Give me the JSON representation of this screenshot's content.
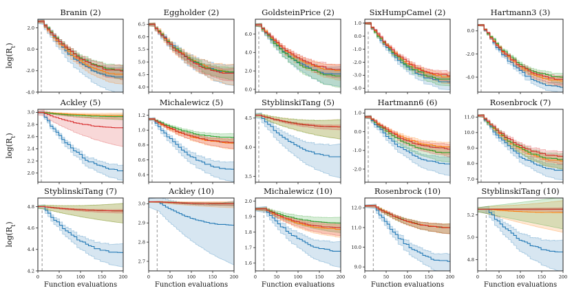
{
  "figure": {
    "series_colors": [
      "#1f77b4",
      "#ff7f0e",
      "#2ca02c",
      "#d62728"
    ],
    "init_marker_color": "#aaaaaa"
  },
  "chart_data": [
    {
      "type": "line",
      "title": "Branin (2)",
      "ylabel": "log(R_t)",
      "xlabel": "",
      "ylim": [
        -4.0,
        2.8
      ],
      "yticks": [
        "2.0",
        "0.0",
        "-2.0",
        "-4.0"
      ],
      "yvals": [
        2,
        0,
        -2,
        -4
      ],
      "xlim": [
        0,
        200
      ],
      "xticks": [
        "",
        "",
        "",
        "",
        ""
      ],
      "init_x": 8,
      "series": [
        {
          "color": "#1f77b4",
          "start": 2.6,
          "end": -2.6,
          "band": 1.5
        },
        {
          "color": "#ff7f0e",
          "start": 2.6,
          "end": -2.3,
          "band": 0.9
        },
        {
          "color": "#2ca02c",
          "start": 2.6,
          "end": -1.9,
          "band": 0.8
        },
        {
          "color": "#d62728",
          "start": 2.6,
          "end": -2.0,
          "band": 0.8
        }
      ]
    },
    {
      "type": "line",
      "title": "Eggholder (2)",
      "ylabel": "",
      "xlabel": "",
      "ylim": [
        3.8,
        6.7
      ],
      "yticks": [
        "6.5",
        "6.0",
        "5.5",
        "5.0",
        "4.5",
        "4.0"
      ],
      "yvals": [
        6.5,
        6.0,
        5.5,
        5.0,
        4.5,
        4.0
      ],
      "xlim": [
        0,
        200
      ],
      "xticks": [
        "",
        "",
        "",
        "",
        ""
      ],
      "init_x": 8,
      "series": [
        {
          "color": "#1f77b4",
          "start": 6.5,
          "end": 4.6,
          "band": 0.5
        },
        {
          "color": "#ff7f0e",
          "start": 6.5,
          "end": 4.6,
          "band": 0.5
        },
        {
          "color": "#2ca02c",
          "start": 6.5,
          "end": 4.6,
          "band": 0.3
        },
        {
          "color": "#d62728",
          "start": 6.5,
          "end": 4.55,
          "band": 0.3
        }
      ]
    },
    {
      "type": "line",
      "title": "GoldsteinPrice (2)",
      "ylabel": "",
      "xlabel": "",
      "ylim": [
        -0.3,
        7.6
      ],
      "yticks": [
        "6.0",
        "4.0",
        "2.0",
        "0.0"
      ],
      "yvals": [
        6,
        4,
        2,
        0
      ],
      "xlim": [
        0,
        200
      ],
      "xticks": [
        "",
        "",
        "",
        "",
        ""
      ],
      "init_x": 8,
      "series": [
        {
          "color": "#1f77b4",
          "start": 7.0,
          "end": 1.6,
          "band": 1.3
        },
        {
          "color": "#ff7f0e",
          "start": 7.0,
          "end": 2.1,
          "band": 1.0
        },
        {
          "color": "#2ca02c",
          "start": 7.0,
          "end": 1.5,
          "band": 1.2
        },
        {
          "color": "#d62728",
          "start": 7.0,
          "end": 2.2,
          "band": 0.9
        }
      ]
    },
    {
      "type": "line",
      "title": "SixHumpCamel (2)",
      "ylabel": "",
      "xlabel": "",
      "ylim": [
        -4.3,
        1.3
      ],
      "yticks": [
        "1.0",
        "0.0",
        "-1.0",
        "-2.0",
        "-3.0",
        "-4.0"
      ],
      "yvals": [
        1,
        0,
        -1,
        -2,
        -3,
        -4
      ],
      "xlim": [
        0,
        200
      ],
      "xticks": [
        "",
        "",
        "",
        "",
        ""
      ],
      "init_x": 8,
      "series": [
        {
          "color": "#1f77b4",
          "start": 1.0,
          "end": -3.5,
          "band": 0.6
        },
        {
          "color": "#ff7f0e",
          "start": 1.0,
          "end": -3.1,
          "band": 0.5
        },
        {
          "color": "#2ca02c",
          "start": 1.0,
          "end": -3.3,
          "band": 0.5
        },
        {
          "color": "#d62728",
          "start": 1.0,
          "end": -3.0,
          "band": 0.5
        }
      ]
    },
    {
      "type": "line",
      "title": "Hartmann3 (3)",
      "ylabel": "",
      "xlabel": "",
      "ylim": [
        -5.3,
        1.0
      ],
      "yticks": [
        "0.0",
        "-2.0",
        "-4.0"
      ],
      "yvals": [
        0,
        -2,
        -4
      ],
      "xlim": [
        0,
        200
      ],
      "xticks": [
        "",
        "",
        "",
        "",
        ""
      ],
      "init_x": 8,
      "series": [
        {
          "color": "#1f77b4",
          "start": 0.5,
          "end": -4.8,
          "band": 0.5
        },
        {
          "color": "#ff7f0e",
          "start": 0.5,
          "end": -4.3,
          "band": 0.5
        },
        {
          "color": "#2ca02c",
          "start": 0.5,
          "end": -4.0,
          "band": 0.5
        },
        {
          "color": "#d62728",
          "start": 0.5,
          "end": -4.2,
          "band": 0.5
        }
      ]
    },
    {
      "type": "line",
      "title": "Ackley (5)",
      "ylabel": "log(R_t)",
      "xlabel": "",
      "ylim": [
        1.85,
        3.05
      ],
      "yticks": [
        "3.0",
        "2.8",
        "2.6",
        "2.4",
        "2.2",
        "2.0"
      ],
      "yvals": [
        3.0,
        2.8,
        2.6,
        2.4,
        2.2,
        2.0
      ],
      "xlim": [
        0,
        200
      ],
      "xticks": [
        "",
        "",
        "",
        "",
        ""
      ],
      "init_x": 8,
      "series": [
        {
          "color": "#1f77b4",
          "start": 3.0,
          "end": 2.05,
          "band": 0.15
        },
        {
          "color": "#ff7f0e",
          "start": 3.0,
          "end": 2.95,
          "band": 0.06
        },
        {
          "color": "#2ca02c",
          "start": 3.0,
          "end": 2.93,
          "band": 0.05
        },
        {
          "color": "#d62728",
          "start": 3.0,
          "end": 2.75,
          "band": 0.3
        }
      ]
    },
    {
      "type": "line",
      "title": "Michalewicz (5)",
      "ylabel": "",
      "xlabel": "",
      "ylim": [
        0.3,
        1.28
      ],
      "yticks": [
        "1.2",
        "1.0",
        "0.8",
        "0.6",
        "0.4"
      ],
      "yvals": [
        1.2,
        1.0,
        0.8,
        0.6,
        0.4
      ],
      "xlim": [
        0,
        200
      ],
      "xticks": [
        "",
        "",
        "",
        "",
        ""
      ],
      "init_x": 8,
      "series": [
        {
          "color": "#1f77b4",
          "start": 1.15,
          "end": 0.48,
          "band": 0.16
        },
        {
          "color": "#ff7f0e",
          "start": 1.15,
          "end": 0.83,
          "band": 0.08
        },
        {
          "color": "#2ca02c",
          "start": 1.15,
          "end": 0.9,
          "band": 0.08
        },
        {
          "color": "#d62728",
          "start": 1.15,
          "end": 0.84,
          "band": 0.08
        }
      ]
    },
    {
      "type": "line",
      "title": "StyblinskiTang (5)",
      "ylabel": "",
      "xlabel": "",
      "ylim": [
        3.4,
        4.65
      ],
      "yticks": [
        "4.5",
        "4.0",
        "3.5"
      ],
      "yvals": [
        4.5,
        4.0,
        3.5
      ],
      "xlim": [
        0,
        200
      ],
      "xticks": [
        "",
        "",
        "",
        "",
        ""
      ],
      "init_x": 8,
      "series": [
        {
          "color": "#1f77b4",
          "start": 4.55,
          "end": 3.84,
          "band": 0.35
        },
        {
          "color": "#ff7f0e",
          "start": 4.55,
          "end": 4.35,
          "band": 0.2
        },
        {
          "color": "#2ca02c",
          "start": 4.55,
          "end": 4.35,
          "band": 0.2
        },
        {
          "color": "#d62728",
          "start": 4.55,
          "end": 4.35,
          "band": 0.05
        }
      ]
    },
    {
      "type": "line",
      "title": "Hartmann6 (6)",
      "ylabel": "",
      "xlabel": "",
      "ylim": [
        -2.7,
        1.2
      ],
      "yticks": [
        "1.0",
        "0.0",
        "-1.0",
        "-2.0"
      ],
      "yvals": [
        1,
        0,
        -1,
        -2
      ],
      "xlim": [
        0,
        200
      ],
      "xticks": [
        "",
        "",
        "",
        "",
        ""
      ],
      "init_x": 8,
      "series": [
        {
          "color": "#1f77b4",
          "start": 0.8,
          "end": -1.7,
          "band": 0.6
        },
        {
          "color": "#ff7f0e",
          "start": 0.8,
          "end": -0.8,
          "band": 0.4
        },
        {
          "color": "#2ca02c",
          "start": 0.8,
          "end": -1.1,
          "band": 0.5
        },
        {
          "color": "#d62728",
          "start": 0.8,
          "end": -0.9,
          "band": 0.4
        }
      ]
    },
    {
      "type": "line",
      "title": "Rosenbrock (7)",
      "ylabel": "",
      "xlabel": "",
      "ylim": [
        6.8,
        11.5
      ],
      "yticks": [
        "11.0",
        "10.0",
        "9.0",
        "8.0",
        "7.0"
      ],
      "yvals": [
        11,
        10,
        9,
        8,
        7
      ],
      "xlim": [
        0,
        200
      ],
      "xticks": [
        "",
        "",
        "",
        "",
        ""
      ],
      "init_x": 8,
      "series": [
        {
          "color": "#1f77b4",
          "start": 11.1,
          "end": 7.6,
          "band": 0.6
        },
        {
          "color": "#ff7f0e",
          "start": 11.1,
          "end": 8.2,
          "band": 0.5
        },
        {
          "color": "#2ca02c",
          "start": 11.1,
          "end": 8.3,
          "band": 0.6
        },
        {
          "color": "#d62728",
          "start": 11.1,
          "end": 8.5,
          "band": 0.5
        }
      ]
    },
    {
      "type": "line",
      "title": "StyblinskiTang (7)",
      "ylabel": "log(R_t)",
      "xlabel": "Function evaluations",
      "ylim": [
        4.2,
        4.88
      ],
      "yticks": [
        "4.8",
        "4.6",
        "4.4",
        "4.2"
      ],
      "yvals": [
        4.8,
        4.6,
        4.4,
        4.2
      ],
      "xlim": [
        0,
        200
      ],
      "xticks": [
        "0",
        "50",
        "100",
        "150",
        "200"
      ],
      "init_x": 10,
      "series": [
        {
          "color": "#1f77b4",
          "start": 4.8,
          "end": 4.37,
          "band": 0.13
        },
        {
          "color": "#ff7f0e",
          "start": 4.8,
          "end": 4.76,
          "band": 0.11
        },
        {
          "color": "#2ca02c",
          "start": 4.8,
          "end": 4.76,
          "band": 0.11
        },
        {
          "color": "#d62728",
          "start": 4.8,
          "end": 4.76,
          "band": 0.02
        }
      ]
    },
    {
      "type": "line",
      "title": "Ackley (10)",
      "ylabel": "",
      "xlabel": "Function evaluations",
      "ylim": [
        2.65,
        3.03
      ],
      "yticks": [
        "3.0",
        "2.9",
        "2.8",
        "2.7"
      ],
      "yvals": [
        3.0,
        2.9,
        2.8,
        2.7
      ],
      "xlim": [
        0,
        200
      ],
      "xticks": [
        "0",
        "50",
        "100",
        "150",
        "200"
      ],
      "init_x": 20,
      "series": [
        {
          "color": "#1f77b4",
          "start": 3.01,
          "end": 2.89,
          "band": 0.2
        },
        {
          "color": "#ff7f0e",
          "start": 3.01,
          "end": 3.0,
          "band": 0.02
        },
        {
          "color": "#2ca02c",
          "start": 3.01,
          "end": 3.0,
          "band": 0.01
        },
        {
          "color": "#d62728",
          "start": 3.01,
          "end": 3.0,
          "band": 0.01
        }
      ]
    },
    {
      "type": "line",
      "title": "Michalewicz (10)",
      "ylabel": "",
      "xlabel": "Function evaluations",
      "ylim": [
        1.55,
        2.02
      ],
      "yticks": [
        "2.0",
        "1.9",
        "1.8",
        "1.7",
        "1.6"
      ],
      "yvals": [
        2.0,
        1.9,
        1.8,
        1.7,
        1.6
      ],
      "xlim": [
        0,
        200
      ],
      "xticks": [
        "0",
        "50",
        "100",
        "150",
        "200"
      ],
      "init_x": 20,
      "series": [
        {
          "color": "#1f77b4",
          "start": 1.95,
          "end": 1.68,
          "band": 0.1
        },
        {
          "color": "#ff7f0e",
          "start": 1.95,
          "end": 1.82,
          "band": 0.05
        },
        {
          "color": "#2ca02c",
          "start": 1.95,
          "end": 1.86,
          "band": 0.06
        },
        {
          "color": "#d62728",
          "start": 1.95,
          "end": 1.83,
          "band": 0.05
        }
      ]
    },
    {
      "type": "line",
      "title": "Rosenbrock (10)",
      "ylabel": "",
      "xlabel": "Function evaluations",
      "ylim": [
        8.8,
        12.5
      ],
      "yticks": [
        "12.0",
        "11.0",
        "10.0",
        "9.0"
      ],
      "yvals": [
        12,
        11,
        10,
        9
      ],
      "xlim": [
        0,
        200
      ],
      "xticks": [
        "0",
        "50",
        "100",
        "150",
        "200"
      ],
      "init_x": 20,
      "series": [
        {
          "color": "#1f77b4",
          "start": 12.1,
          "end": 9.3,
          "band": 0.6
        },
        {
          "color": "#ff7f0e",
          "start": 12.1,
          "end": 11.0,
          "band": 0.3
        },
        {
          "color": "#2ca02c",
          "start": 12.1,
          "end": 11.0,
          "band": 0.3
        },
        {
          "color": "#d62728",
          "start": 12.1,
          "end": 11.0,
          "band": 0.3
        }
      ]
    },
    {
      "type": "line",
      "title": "StyblinskiTang (10)",
      "ylabel": "",
      "xlabel": "Function evaluations",
      "ylim": [
        4.7,
        5.35
      ],
      "yticks": [
        "5.2",
        "5.0",
        "4.8"
      ],
      "yvals": [
        5.2,
        5.0,
        4.8
      ],
      "xlim": [
        0,
        200
      ],
      "xticks": [
        "0",
        "50",
        "100",
        "150",
        "200"
      ],
      "init_x": 20,
      "series": [
        {
          "color": "#1f77b4",
          "start": 5.25,
          "end": 4.87,
          "band": 0.17
        },
        {
          "color": "#ff7f0e",
          "start": 5.25,
          "end": 5.22,
          "band": 0.17
        },
        {
          "color": "#2ca02c",
          "start": 5.25,
          "end": 5.25,
          "band": 0.17
        },
        {
          "color": "#d62728",
          "start": 5.25,
          "end": 5.25,
          "band": 0.02
        }
      ]
    }
  ]
}
